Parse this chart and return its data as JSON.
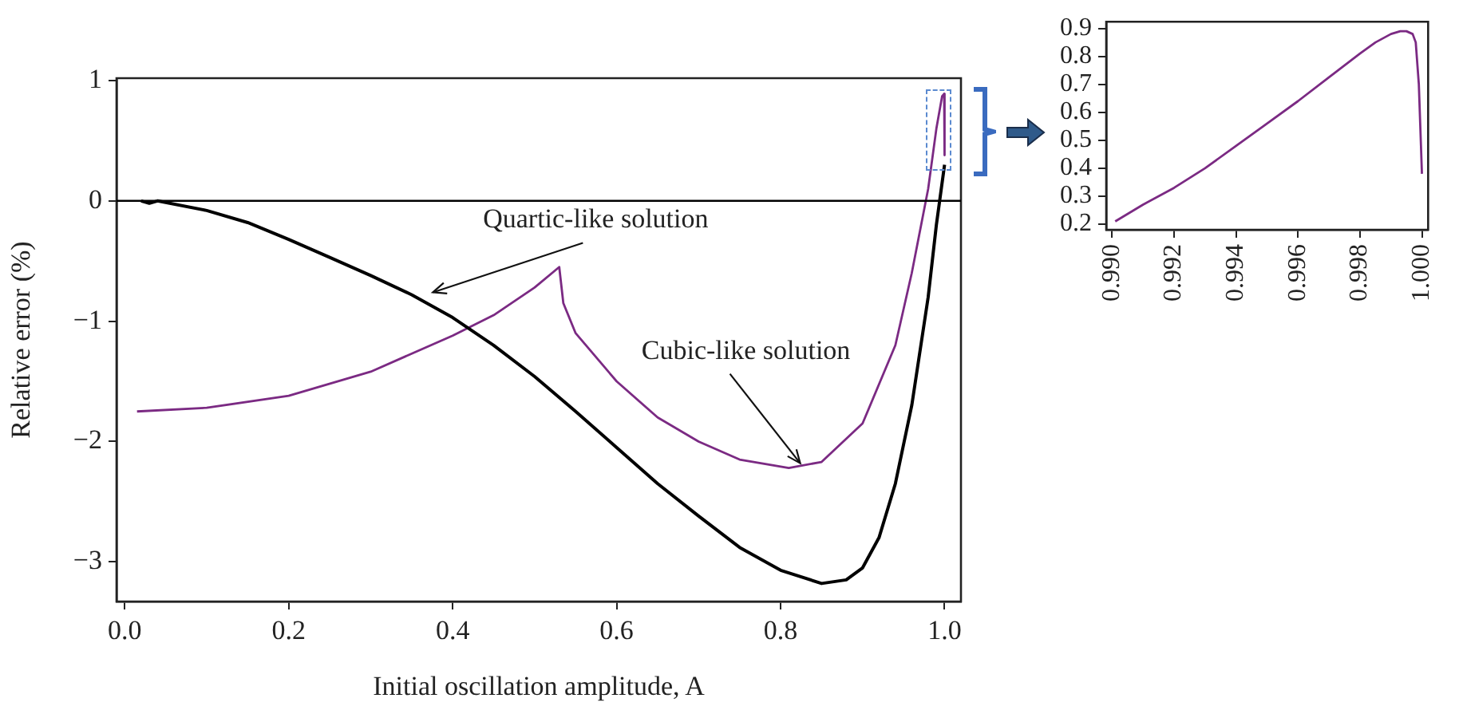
{
  "chart_data": [
    {
      "type": "line",
      "xlabel": "Initial oscillation amplitude, A",
      "ylabel": "Relative error (%)",
      "marker": "none",
      "line_style": "solid",
      "xlim": [
        -0.01,
        1.02
      ],
      "ylim": [
        -3.33,
        1.02
      ],
      "xticks": [
        {
          "value": 0,
          "label": "0.0"
        },
        0.2,
        0.4,
        0.6,
        0.8,
        {
          "value": 1,
          "label": "1.0"
        }
      ],
      "yticks": [
        {
          "value": -3,
          "label": "−3"
        },
        {
          "value": -2,
          "label": "−2"
        },
        {
          "value": -1,
          "label": "−1"
        },
        0,
        1
      ],
      "ref_lines": [
        {
          "axis": "y",
          "value": 0,
          "color": "#000000"
        }
      ],
      "annotations": [
        {
          "text": "Quartic-like solution",
          "x": 0.37,
          "y": -0.8
        },
        {
          "text": "Cubic-like solution",
          "x": 0.82,
          "y": -2.22
        }
      ],
      "series": [
        {
          "color": "#000000",
          "x": [
            0.02,
            0.03,
            0.04,
            0.1,
            0.15,
            0.2,
            0.25,
            0.3,
            0.35,
            0.4,
            0.45,
            0.5,
            0.55,
            0.6,
            0.65,
            0.7,
            0.75,
            0.8,
            0.85,
            0.88,
            0.9,
            0.92,
            0.94,
            0.96,
            0.98,
            0.99,
            1.0
          ],
          "values": [
            0,
            -0.02,
            0,
            -0.08,
            -0.18,
            -0.32,
            -0.47,
            -0.62,
            -0.78,
            -0.97,
            -1.2,
            -1.46,
            -1.75,
            -2.05,
            -2.35,
            -2.62,
            -2.88,
            -3.07,
            -3.18,
            -3.15,
            -3.05,
            -2.8,
            -2.35,
            -1.7,
            -0.8,
            -0.2,
            0.3
          ]
        },
        {
          "color": "#7b2a83",
          "x": [
            0.015,
            0.1,
            0.2,
            0.3,
            0.4,
            0.45,
            0.5,
            0.53,
            0.535,
            0.55,
            0.6,
            0.65,
            0.7,
            0.75,
            0.81,
            0.85,
            0.9,
            0.94,
            0.96,
            0.98,
            0.99,
            0.997,
            0.9995,
            1.0
          ],
          "values": [
            -1.75,
            -1.72,
            -1.62,
            -1.42,
            -1.12,
            -0.95,
            -0.72,
            -0.55,
            -0.85,
            -1.1,
            -1.5,
            -1.8,
            -2.0,
            -2.15,
            -2.22,
            -2.17,
            -1.85,
            -1.2,
            -0.6,
            0.1,
            0.6,
            0.87,
            0.89,
            0.38
          ]
        }
      ]
    },
    {
      "type": "line",
      "marker": "none",
      "line_style": "solid",
      "xlim": [
        0.98981,
        1.0002
      ],
      "ylim": [
        0.18,
        0.924
      ],
      "xticks": [
        {
          "value": 0.99,
          "label": "0.990"
        },
        {
          "value": 0.992,
          "label": "0.992"
        },
        {
          "value": 0.994,
          "label": "0.994"
        },
        {
          "value": 0.996,
          "label": "0.996"
        },
        {
          "value": 0.998,
          "label": "0.998"
        },
        {
          "value": 1,
          "label": "1.000"
        }
      ],
      "yticks": [
        0.2,
        0.3,
        0.4,
        0.5,
        0.6,
        0.7,
        0.8,
        0.9
      ],
      "series": [
        {
          "color": "#7b2a83",
          "x": [
            0.9901,
            0.991,
            0.992,
            0.993,
            0.994,
            0.995,
            0.996,
            0.997,
            0.998,
            0.9985,
            0.999,
            0.9993,
            0.9995,
            0.9997,
            0.9998,
            0.9999,
            1.0
          ],
          "values": [
            0.21,
            0.27,
            0.33,
            0.4,
            0.48,
            0.56,
            0.64,
            0.725,
            0.81,
            0.85,
            0.88,
            0.89,
            0.89,
            0.88,
            0.85,
            0.7,
            0.38
          ]
        }
      ]
    }
  ]
}
